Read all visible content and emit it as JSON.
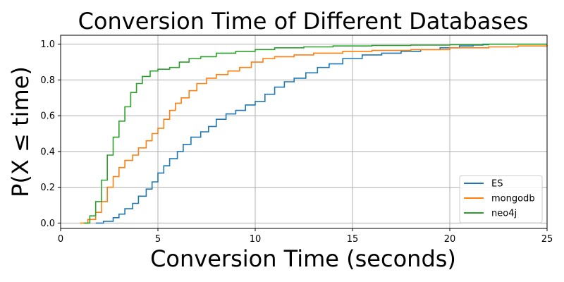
{
  "chart_data": {
    "type": "line",
    "subtype": "ecdf-step",
    "title": "Conversion Time of Different Databases",
    "xlabel": "Conversion Time (seconds)",
    "ylabel": "P(X ≤ time)",
    "xlim": [
      0,
      25
    ],
    "ylim": [
      -0.03,
      1.05
    ],
    "xticks": [
      0,
      5,
      10,
      15,
      20,
      25
    ],
    "yticks": [
      0.0,
      0.2,
      0.4,
      0.6,
      0.8,
      1.0
    ],
    "grid": true,
    "legend_position": "lower-right",
    "series": [
      {
        "name": "ES",
        "color": "#1f77b4",
        "points": [
          [
            1.8,
            0.0
          ],
          [
            2.2,
            0.01
          ],
          [
            2.7,
            0.03
          ],
          [
            3.0,
            0.05
          ],
          [
            3.3,
            0.08
          ],
          [
            3.7,
            0.11
          ],
          [
            4.0,
            0.15
          ],
          [
            4.4,
            0.19
          ],
          [
            4.7,
            0.23
          ],
          [
            5.0,
            0.28
          ],
          [
            5.3,
            0.32
          ],
          [
            5.6,
            0.36
          ],
          [
            6.0,
            0.4
          ],
          [
            6.3,
            0.44
          ],
          [
            6.7,
            0.48
          ],
          [
            7.2,
            0.51
          ],
          [
            7.6,
            0.54
          ],
          [
            8.0,
            0.58
          ],
          [
            8.5,
            0.61
          ],
          [
            9.0,
            0.63
          ],
          [
            9.5,
            0.66
          ],
          [
            10.0,
            0.68
          ],
          [
            10.5,
            0.72
          ],
          [
            11.0,
            0.76
          ],
          [
            11.5,
            0.79
          ],
          [
            12.0,
            0.81
          ],
          [
            12.6,
            0.84
          ],
          [
            13.2,
            0.87
          ],
          [
            13.8,
            0.89
          ],
          [
            14.5,
            0.92
          ],
          [
            15.5,
            0.94
          ],
          [
            16.5,
            0.95
          ],
          [
            17.5,
            0.96
          ],
          [
            18.5,
            0.97
          ],
          [
            19.5,
            0.98
          ],
          [
            20.5,
            0.99
          ],
          [
            21.2,
            0.995
          ],
          [
            21.7,
            1.0
          ],
          [
            25.0,
            1.0
          ]
        ]
      },
      {
        "name": "mongodb",
        "color": "#ff7f0e",
        "points": [
          [
            1.0,
            0.0
          ],
          [
            1.4,
            0.02
          ],
          [
            1.8,
            0.06
          ],
          [
            2.1,
            0.12
          ],
          [
            2.4,
            0.2
          ],
          [
            2.7,
            0.26
          ],
          [
            3.0,
            0.31
          ],
          [
            3.3,
            0.35
          ],
          [
            3.7,
            0.38
          ],
          [
            4.0,
            0.42
          ],
          [
            4.4,
            0.46
          ],
          [
            4.7,
            0.5
          ],
          [
            5.0,
            0.53
          ],
          [
            5.3,
            0.58
          ],
          [
            5.6,
            0.63
          ],
          [
            5.9,
            0.67
          ],
          [
            6.2,
            0.7
          ],
          [
            6.6,
            0.74
          ],
          [
            7.0,
            0.78
          ],
          [
            7.5,
            0.81
          ],
          [
            8.0,
            0.83
          ],
          [
            8.6,
            0.85
          ],
          [
            9.2,
            0.87
          ],
          [
            9.8,
            0.9
          ],
          [
            10.4,
            0.92
          ],
          [
            11.0,
            0.93
          ],
          [
            12.0,
            0.94
          ],
          [
            13.0,
            0.95
          ],
          [
            14.5,
            0.96
          ],
          [
            16.0,
            0.965
          ],
          [
            18.0,
            0.97
          ],
          [
            20.0,
            0.98
          ],
          [
            22.0,
            0.985
          ],
          [
            23.5,
            0.99
          ],
          [
            25.0,
            0.995
          ]
        ]
      },
      {
        "name": "neo4j",
        "color": "#2ca02c",
        "points": [
          [
            1.2,
            0.0
          ],
          [
            1.5,
            0.04
          ],
          [
            1.8,
            0.12
          ],
          [
            2.1,
            0.24
          ],
          [
            2.4,
            0.38
          ],
          [
            2.7,
            0.48
          ],
          [
            3.0,
            0.57
          ],
          [
            3.3,
            0.65
          ],
          [
            3.6,
            0.73
          ],
          [
            3.9,
            0.78
          ],
          [
            4.2,
            0.82
          ],
          [
            4.6,
            0.85
          ],
          [
            5.0,
            0.86
          ],
          [
            5.6,
            0.87
          ],
          [
            6.1,
            0.9
          ],
          [
            6.6,
            0.92
          ],
          [
            7.2,
            0.93
          ],
          [
            8.0,
            0.95
          ],
          [
            9.0,
            0.96
          ],
          [
            10.0,
            0.97
          ],
          [
            11.0,
            0.98
          ],
          [
            12.5,
            0.985
          ],
          [
            14.0,
            0.99
          ],
          [
            16.0,
            0.993
          ],
          [
            18.0,
            0.995
          ],
          [
            20.0,
            0.997
          ],
          [
            22.0,
            1.0
          ],
          [
            25.0,
            1.0
          ]
        ]
      }
    ]
  }
}
